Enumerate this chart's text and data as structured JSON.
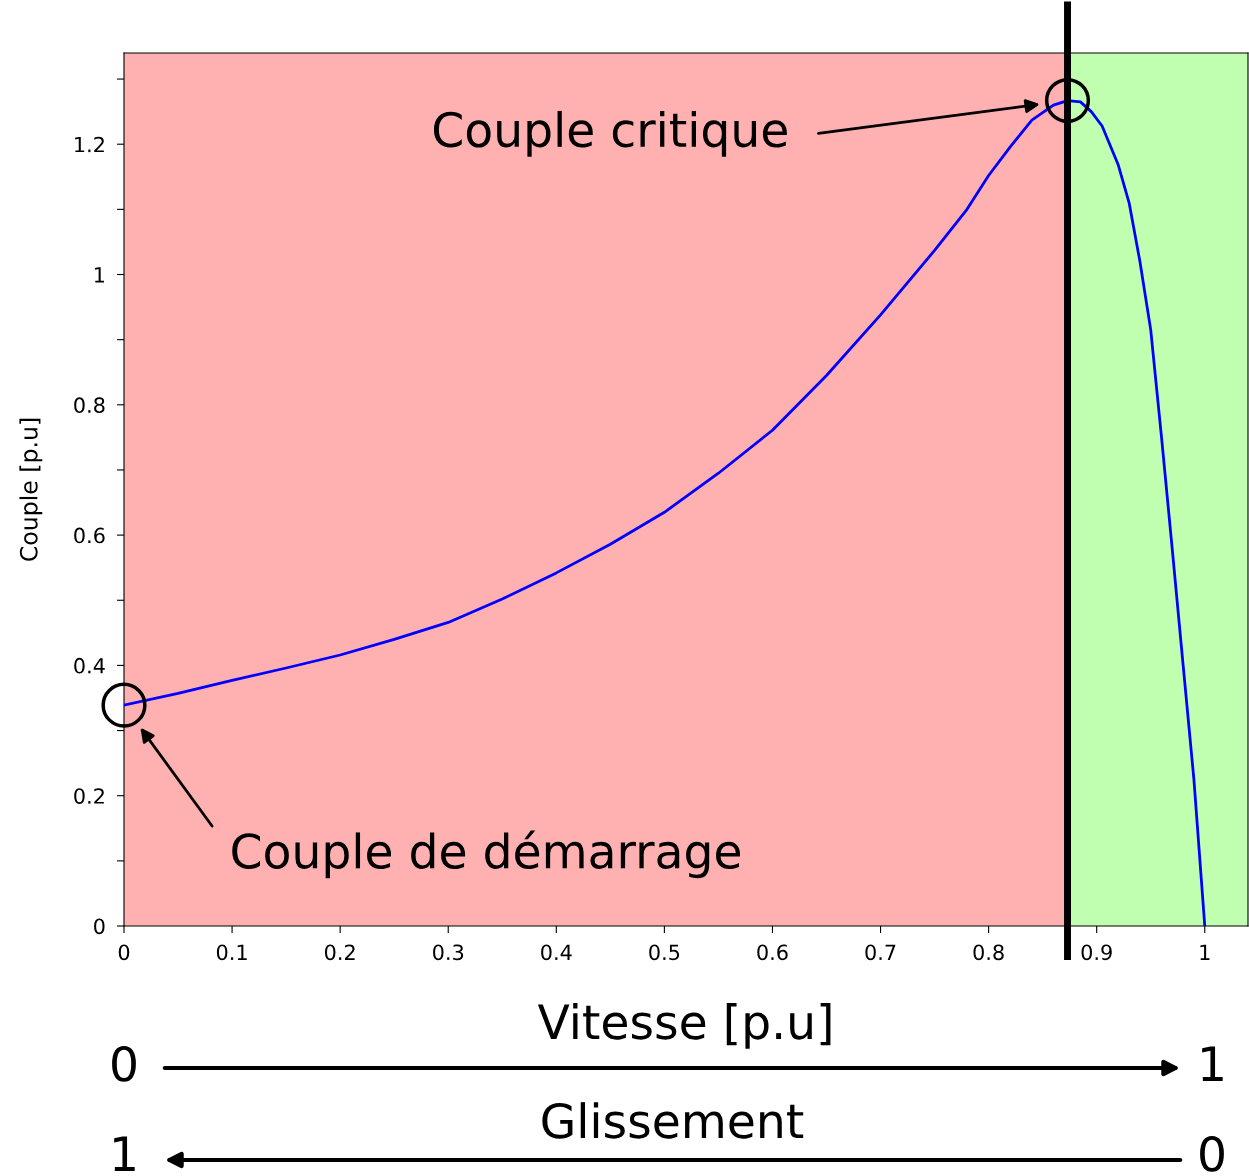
{
  "chart_data": {
    "type": "line",
    "xlabel": "Vitesse [p.u]",
    "ylabel": "Couple [p.u]",
    "series": [
      {
        "color": "#0000ff",
        "x": [
          0,
          0.05,
          0.1,
          0.15,
          0.2,
          0.25,
          0.3,
          0.35,
          0.4,
          0.45,
          0.5,
          0.55,
          0.6,
          0.65,
          0.7,
          0.75,
          0.78,
          0.8,
          0.82,
          0.84,
          0.86,
          0.873,
          0.885,
          0.895,
          0.905,
          0.92,
          0.93,
          0.94,
          0.95,
          0.96,
          0.97,
          0.98,
          0.99,
          1.0
        ],
        "values": [
          0.339,
          0.357,
          0.377,
          0.396,
          0.416,
          0.44,
          0.466,
          0.502,
          0.542,
          0.586,
          0.635,
          0.695,
          0.761,
          0.845,
          0.938,
          1.037,
          1.1,
          1.152,
          1.196,
          1.237,
          1.26,
          1.267,
          1.265,
          1.25,
          1.228,
          1.168,
          1.11,
          1.02,
          0.915,
          0.75,
          0.577,
          0.4,
          0.224,
          0
        ]
      },
      {
        "type": "scatter",
        "color": "#000000",
        "marker": "circle",
        "x": [
          0,
          0.873
        ],
        "values": [
          0.339,
          1.267
        ]
      }
    ],
    "xlim": [
      0,
      1.04
    ],
    "ylim": [
      0,
      1.34
    ],
    "xticks": [
      0,
      0.1,
      0.2,
      0.3,
      0.4,
      0.5,
      0.6,
      0.7,
      0.8,
      0.9,
      1
    ],
    "yticks": [
      0,
      {
        "value": 0.1,
        "label": null
      },
      0.2,
      {
        "value": 0.3,
        "label": null
      },
      0.4,
      {
        "value": 0.5,
        "label": null
      },
      0.6,
      {
        "value": 0.7,
        "label": null
      },
      0.8,
      {
        "value": 0.9,
        "label": null
      },
      1,
      {
        "value": 1.1,
        "label": null
      },
      1.2,
      {
        "value": 1.3,
        "label": null
      }
    ],
    "bands": [
      {
        "axis": "x",
        "from": 0,
        "to": 0.873,
        "color": "#ffb0b0"
      },
      {
        "axis": "x",
        "from": 0.873,
        "to": 1.04,
        "color": "#c0ffb0"
      }
    ],
    "ref_lines": [
      {
        "axis": "x",
        "value": 0.873,
        "color": "#000000",
        "line_style": "solid"
      }
    ],
    "annotations": [
      "Couple critique",
      "Couple de démarrage",
      "0",
      "1",
      "Glissement",
      "1",
      "0"
    ],
    "grid": false,
    "legend": false
  }
}
